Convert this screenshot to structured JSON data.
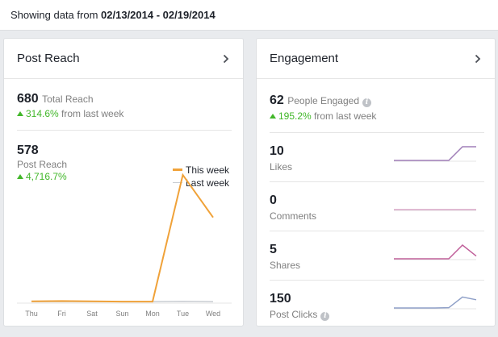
{
  "header": {
    "prefix": "Showing data from",
    "range": "02/13/2014 - 02/19/2014"
  },
  "reach": {
    "title": "Post Reach",
    "total_value": "680",
    "total_label": "Total Reach",
    "total_change": "314.6%",
    "total_change_suffix": "from last week",
    "post_value": "578",
    "post_label": "Post Reach",
    "post_change": "4,716.7%",
    "legend_this": "This week",
    "legend_last": "Last week",
    "colors": {
      "this_week": "#f0a239",
      "last_week": "#c9cdd2"
    }
  },
  "engagement": {
    "title": "Engagement",
    "people_value": "62",
    "people_label": "People Engaged",
    "people_change": "195.2%",
    "people_change_suffix": "from last week",
    "metrics": [
      {
        "value": "10",
        "label": "Likes",
        "color": "#a07fb8",
        "spark": [
          0,
          0,
          0,
          0,
          0,
          1,
          1
        ]
      },
      {
        "value": "0",
        "label": "Comments",
        "color": "#d9a7c7",
        "spark": [
          0,
          0,
          0,
          0,
          0,
          0,
          0
        ]
      },
      {
        "value": "5",
        "label": "Shares",
        "color": "#c0609a",
        "spark": [
          0,
          0,
          0,
          0,
          0,
          1,
          0.2
        ]
      },
      {
        "value": "150",
        "label": "Post Clicks",
        "color": "#8fa0c8",
        "spark": [
          0,
          0,
          0,
          0,
          0.02,
          0.8,
          0.6
        ],
        "info": true
      }
    ]
  },
  "chart_data": {
    "type": "line",
    "categories": [
      "Thu",
      "Fri",
      "Sat",
      "Sun",
      "Mon",
      "Tue",
      "Wed"
    ],
    "series": [
      {
        "name": "This week",
        "values": [
          3,
          4,
          3,
          2,
          2,
          375,
          250
        ]
      },
      {
        "name": "Last week",
        "values": [
          2,
          2,
          2,
          2,
          2,
          3,
          2
        ]
      }
    ],
    "ylim": [
      0,
      420
    ]
  }
}
